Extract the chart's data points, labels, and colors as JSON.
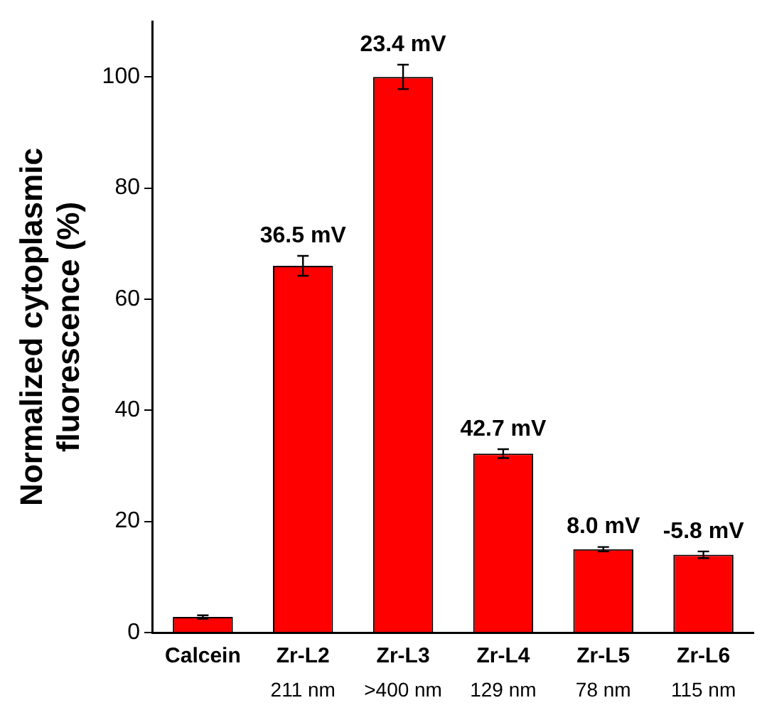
{
  "chart_data": {
    "type": "bar",
    "ylabel": "Normalized cytoplasmic fluorescence (%)",
    "categories": [
      "Calcein",
      "Zr-L2",
      "Zr-L3",
      "Zr-L4",
      "Zr-L5",
      "Zr-L6"
    ],
    "series": [
      {
        "color": "#ff0000",
        "values": [
          2.8,
          66,
          100,
          32.2,
          15,
          14
        ],
        "errors": [
          0.3,
          1.8,
          2.2,
          0.8,
          0.4,
          0.6
        ]
      }
    ],
    "ylim": [
      0,
      110
    ],
    "yticks": [
      0,
      20,
      40,
      60,
      80,
      100
    ],
    "grid": false,
    "legend": false,
    "annotations": [
      {
        "text": "36.5 mV",
        "x": "Zr-L2",
        "y": 66
      },
      {
        "text": "23.4 mV",
        "x": "Zr-L3",
        "y": 100
      },
      {
        "text": "42.7 mV",
        "x": "Zr-L4",
        "y": 32.2
      },
      {
        "text": "8.0 mV",
        "x": "Zr-L5",
        "y": 15
      },
      {
        "text": "-5.8 mV",
        "x": "Zr-L6",
        "y": 14
      },
      "211 nm",
      ">400 nm",
      "129 nm",
      "78 nm",
      "115 nm"
    ]
  }
}
